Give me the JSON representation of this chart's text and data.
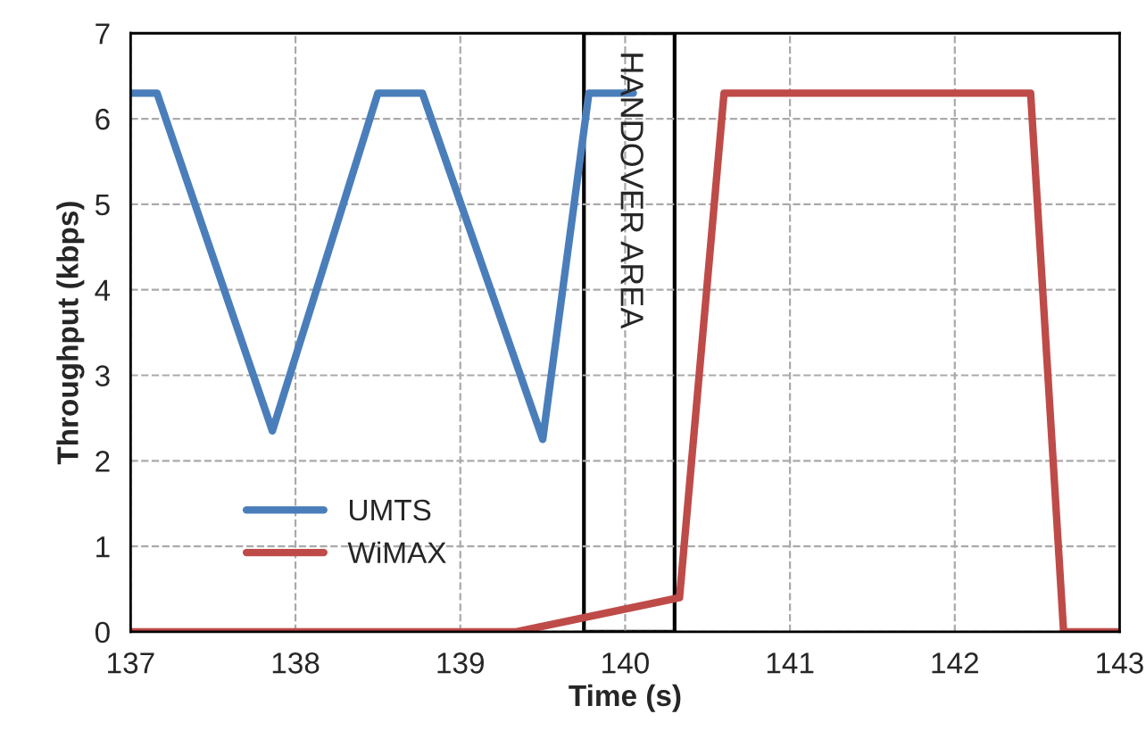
{
  "chart_data": {
    "type": "line",
    "xlabel": "Time (s)",
    "ylabel": "Throughput (kbps)",
    "xlim": [
      137,
      143
    ],
    "xticks": [
      137,
      138,
      139,
      140,
      141,
      142,
      143
    ],
    "ylim": [
      0,
      7
    ],
    "yticks": [
      0,
      1,
      2,
      3,
      4,
      5,
      6,
      7
    ],
    "grid": true,
    "legend": "lower left",
    "marker": "none",
    "line_style": "solid",
    "series": [
      {
        "name": "UMTS",
        "color": "#4a7ebb",
        "x": [
          137.0,
          137.16,
          137.86,
          138.5,
          138.77,
          139.5,
          139.78,
          140.05
        ],
        "values": [
          6.3,
          6.3,
          2.35,
          6.3,
          6.3,
          2.25,
          6.3,
          6.3
        ]
      },
      {
        "name": "WiMAX",
        "color": "#be4b48",
        "x": [
          137.0,
          139.34,
          140.33,
          140.6,
          142.46,
          142.66,
          143.0
        ],
        "values": [
          0,
          0,
          0.4,
          6.3,
          6.3,
          0,
          0
        ]
      }
    ],
    "bands": [
      {
        "axis": "x",
        "from": 139.75,
        "to": 140.3,
        "label": "HANDOVER AREA",
        "color": "#ffffff"
      }
    ]
  }
}
